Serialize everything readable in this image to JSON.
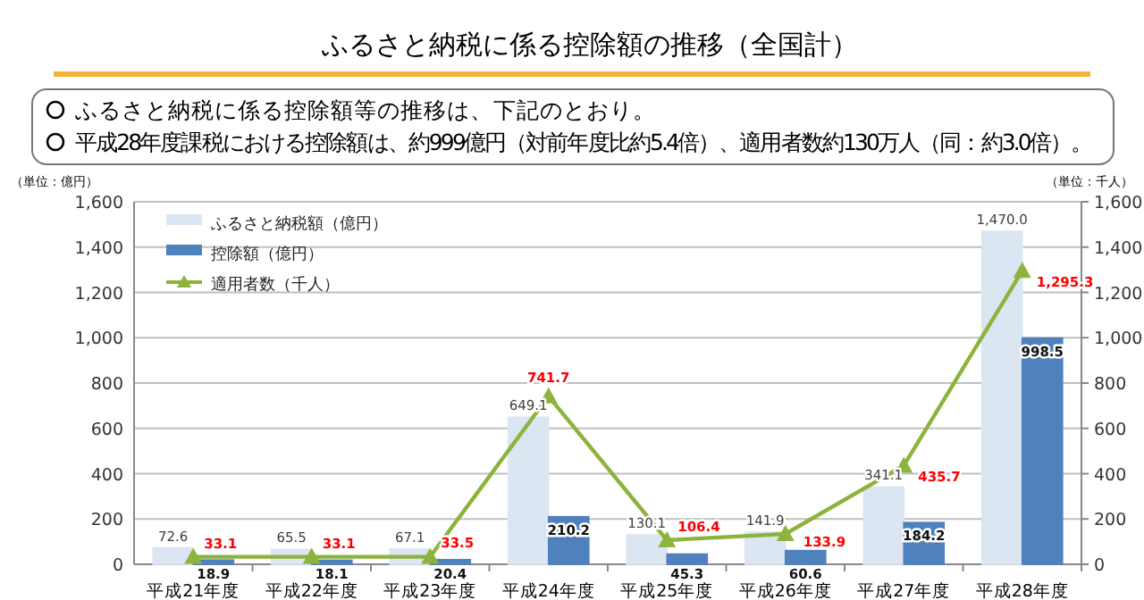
{
  "chart_data": {
    "type": "bar",
    "title": "ふるさと納税に係る控除額の推移（全国計）",
    "annotations": [
      "ふるさと納税に係る控除額等の推移は、下記のとおり。",
      "平成28年度課税における控除額は、約999億円（対前年度比約5.4倍）、適用者数約130万人（同：約3.0倍）。"
    ],
    "ylabel": "（単位：億円）",
    "y2label": "（単位：千人）",
    "categories": [
      "平成21年度",
      "平成22年度",
      "平成23年度",
      "平成24年度",
      "平成25年度",
      "平成26年度",
      "平成27年度",
      "平成28年度"
    ],
    "series": [
      {
        "name": "ふるさと納税額（億円）",
        "color": "#dce6f2",
        "values": [
          72.6,
          65.5,
          67.1,
          649.1,
          130.1,
          141.9,
          341.1,
          1470.0
        ],
        "value_labels": [
          "72.6",
          "65.5",
          "67.1",
          "649.1",
          "130.1",
          "141.9",
          "341.1",
          "1,470.0"
        ]
      },
      {
        "name": "控除額（億円）",
        "color": "#4f81bd",
        "values": [
          18.9,
          18.1,
          20.4,
          210.2,
          45.3,
          60.6,
          184.2,
          998.5
        ],
        "value_labels": [
          "18.9",
          "18.1",
          "20.4",
          "210.2",
          "45.3",
          "60.6",
          "184.2",
          "998.5"
        ]
      },
      {
        "name": "適用者数（千人）",
        "type": "line",
        "axis": "y2",
        "color": "#8cb43c",
        "marker": "triangle",
        "values": [
          33.1,
          33.1,
          33.5,
          741.7,
          106.4,
          133.9,
          435.7,
          1295.3
        ],
        "value_labels": [
          "33.1",
          "33.1",
          "33.5",
          "741.7",
          "106.4",
          "133.9",
          "435.7",
          "1,295.3"
        ]
      }
    ],
    "ylim": [
      0,
      1600
    ],
    "yticks": [
      0,
      200,
      400,
      600,
      800,
      {
        "value": 1000,
        "label": "1,000"
      },
      {
        "value": 1200,
        "label": "1,200"
      },
      {
        "value": 1400,
        "label": "1,400"
      },
      {
        "value": 1600,
        "label": "1,600"
      }
    ],
    "y2lim": [
      0,
      1600
    ],
    "y2ticks": [
      0,
      200,
      400,
      600,
      800,
      {
        "value": 1000,
        "label": "1,000"
      },
      {
        "value": 1200,
        "label": "1,200"
      },
      {
        "value": 1400,
        "label": "1,400"
      },
      {
        "value": 1600,
        "label": "1,600"
      }
    ],
    "grid": "y",
    "legend": "top left"
  }
}
